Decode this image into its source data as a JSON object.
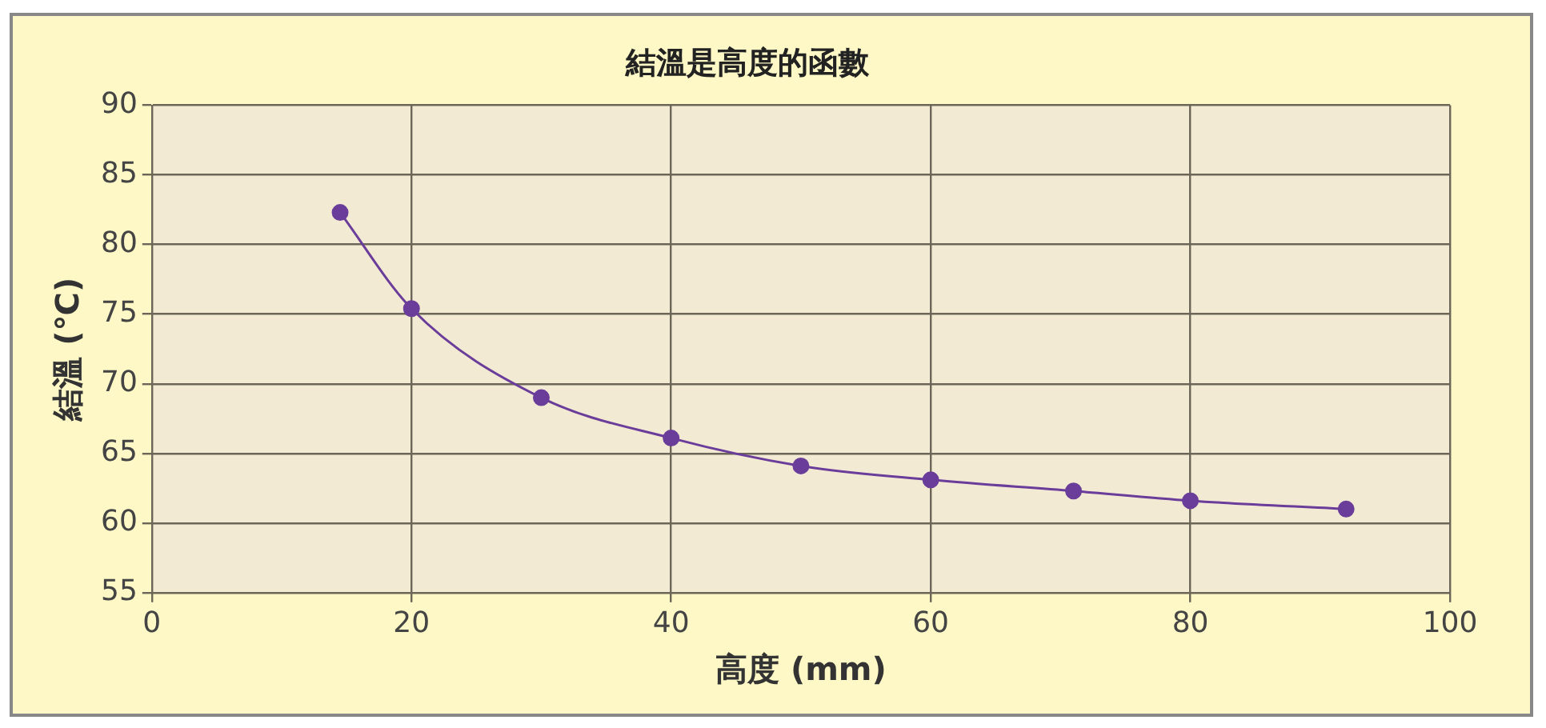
{
  "chart_data": {
    "type": "line",
    "title": "結溫是高度的函數",
    "xlabel": "高度 (mm)",
    "ylabel": "結溫 (℃)",
    "x": [
      14.5,
      20,
      30,
      40,
      50,
      60,
      71,
      80,
      92
    ],
    "series": [
      {
        "color": "#6a3d9a",
        "values": [
          82.3,
          75.4,
          69,
          66.1,
          64.1,
          63.1,
          62.3,
          61.6,
          61
        ]
      }
    ],
    "xlim": [
      0,
      100
    ],
    "xticks": [
      0,
      20,
      40,
      60,
      80,
      100
    ],
    "ylim": [
      55,
      90
    ],
    "yticks": [
      55,
      60,
      65,
      70,
      75,
      80,
      85,
      90
    ],
    "grid": true,
    "legend": false,
    "marker": "circle",
    "line_style": "solid"
  }
}
